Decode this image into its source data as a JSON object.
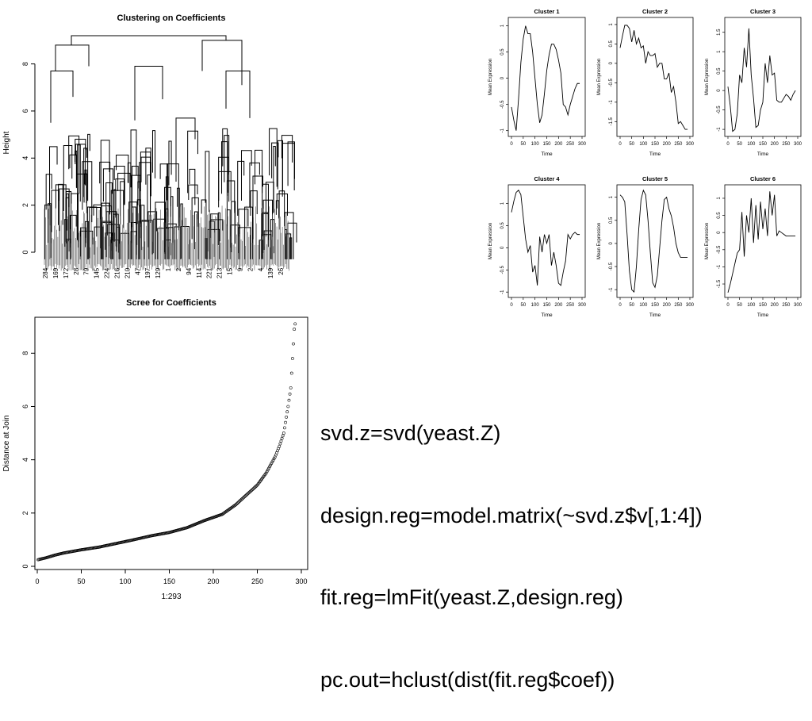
{
  "code_lines": [
    "svd.z=svd(yeast.Z)",
    "design.reg=model.matrix(~svd.z$v[,1:4])",
    "fit.reg=lmFit(yeast.Z,design.reg)",
    "pc.out=hclust(dist(fit.reg$coef))"
  ],
  "chart_data": [
    {
      "type": "dendrogram",
      "title": "Clustering on Coefficients",
      "ylabel": "Height",
      "ylim": [
        0,
        9.3
      ],
      "yticks": [
        0,
        2,
        4,
        6,
        8
      ],
      "top_merges": [
        {
          "height": 9.2,
          "left": 8.8,
          "right": 9.0
        },
        {
          "height": 8.8,
          "left": 7.7,
          "right": 7.9
        },
        {
          "height": 9.0,
          "left": 7.7,
          "right": 7.1
        },
        {
          "height": 7.7,
          "left": 5.5,
          "right": 6.6
        },
        {
          "height": 7.9,
          "left": 5.6,
          "right": 6.5
        },
        {
          "height": 7.7,
          "left": 5.7,
          "right": 6.1
        },
        {
          "height": 7.1,
          "left": 5.5,
          "right": 5.7
        }
      ],
      "tick_labels": [
        "284",
        "169",
        "172",
        "28",
        "79",
        "145",
        "224",
        "216",
        "210",
        "47",
        "197",
        "129",
        "1",
        "2",
        "94",
        "114",
        "221",
        "213",
        "15",
        "9",
        "2",
        "4",
        "139",
        "26"
      ]
    },
    {
      "type": "scatter",
      "title": "Scree for Coefficients",
      "xlabel": "1:293",
      "ylabel": "Distance at Join",
      "xlim": [
        0,
        300
      ],
      "ylim": [
        0,
        9.2
      ],
      "xticks": [
        0,
        50,
        100,
        150,
        200,
        250,
        300
      ],
      "yticks": [
        0,
        2,
        4,
        6,
        8
      ],
      "curve_points": [
        {
          "x": 1,
          "y": 0.25
        },
        {
          "x": 10,
          "y": 0.32
        },
        {
          "x": 20,
          "y": 0.42
        },
        {
          "x": 30,
          "y": 0.5
        },
        {
          "x": 50,
          "y": 0.62
        },
        {
          "x": 70,
          "y": 0.72
        },
        {
          "x": 90,
          "y": 0.86
        },
        {
          "x": 110,
          "y": 1.0
        },
        {
          "x": 130,
          "y": 1.15
        },
        {
          "x": 150,
          "y": 1.27
        },
        {
          "x": 170,
          "y": 1.45
        },
        {
          "x": 190,
          "y": 1.72
        },
        {
          "x": 210,
          "y": 1.95
        },
        {
          "x": 225,
          "y": 2.3
        },
        {
          "x": 240,
          "y": 2.75
        },
        {
          "x": 250,
          "y": 3.05
        },
        {
          "x": 260,
          "y": 3.5
        },
        {
          "x": 270,
          "y": 4.1
        },
        {
          "x": 275,
          "y": 4.5
        },
        {
          "x": 280,
          "y": 5.0
        },
        {
          "x": 285,
          "y": 6.0
        },
        {
          "x": 288,
          "y": 6.7
        },
        {
          "x": 290,
          "y": 7.8
        },
        {
          "x": 292,
          "y": 8.9
        },
        {
          "x": 293,
          "y": 9.1
        }
      ],
      "n_points": 293
    },
    {
      "type": "line",
      "panels": [
        {
          "title": "Cluster 1",
          "xlabel": "Time",
          "ylabel": "Mean Expression",
          "xlim": [
            0,
            300
          ],
          "xticks": [
            0,
            50,
            100,
            150,
            200,
            250,
            300
          ],
          "ylim": [
            -1.05,
            1.1
          ],
          "yticks": [
            -1.0,
            -0.5,
            0.0,
            0.5,
            1.0
          ],
          "x": [
            0,
            10,
            20,
            30,
            40,
            50,
            60,
            70,
            80,
            90,
            100,
            110,
            120,
            130,
            140,
            150,
            160,
            170,
            180,
            190,
            200,
            210,
            220,
            230,
            240,
            250,
            260,
            270,
            280,
            290
          ],
          "y": [
            -0.55,
            -0.8,
            -1.0,
            -0.4,
            0.3,
            0.75,
            1.0,
            0.85,
            0.85,
            0.5,
            0.0,
            -0.5,
            -0.85,
            -0.7,
            -0.3,
            0.15,
            0.45,
            0.65,
            0.65,
            0.55,
            0.35,
            0.1,
            -0.5,
            -0.55,
            -0.7,
            -0.5,
            -0.35,
            -0.2,
            -0.1,
            -0.1
          ]
        },
        {
          "title": "Cluster 2",
          "xlabel": "Time",
          "ylabel": "Mean Expression",
          "xlim": [
            0,
            300
          ],
          "xticks": [
            0,
            50,
            100,
            150,
            200,
            250,
            300
          ],
          "ylim": [
            -1.8,
            1.1
          ],
          "yticks": [
            -1.5,
            -1.0,
            -0.5,
            0.0,
            0.5,
            1.0
          ],
          "x": [
            0,
            10,
            20,
            30,
            40,
            50,
            60,
            70,
            80,
            90,
            100,
            110,
            120,
            130,
            140,
            150,
            160,
            170,
            180,
            190,
            200,
            210,
            220,
            230,
            240,
            250,
            260,
            270,
            280,
            290
          ],
          "y": [
            0.4,
            0.7,
            0.98,
            0.98,
            0.9,
            0.55,
            0.85,
            0.5,
            0.65,
            0.4,
            0.45,
            0.0,
            0.3,
            0.2,
            0.2,
            0.25,
            -0.1,
            0.0,
            0.0,
            -0.4,
            -0.4,
            -0.25,
            -0.75,
            -0.6,
            -1.0,
            -1.55,
            -1.5,
            -1.6,
            -1.7,
            -1.7
          ]
        },
        {
          "title": "Cluster 3",
          "xlabel": "Time",
          "ylabel": "Mean Expression",
          "xlim": [
            0,
            300
          ],
          "xticks": [
            0,
            50,
            100,
            150,
            200,
            250,
            300
          ],
          "ylim": [
            -1.1,
            1.8
          ],
          "yticks": [
            -1.0,
            -0.5,
            0.0,
            0.5,
            1.0,
            1.5
          ],
          "x": [
            0,
            10,
            20,
            30,
            40,
            50,
            60,
            70,
            80,
            90,
            100,
            110,
            120,
            130,
            140,
            150,
            160,
            170,
            180,
            190,
            200,
            210,
            220,
            230,
            240,
            250,
            260,
            270,
            280,
            290
          ],
          "y": [
            0.1,
            -0.4,
            -1.05,
            -1.0,
            -0.6,
            0.4,
            0.2,
            1.1,
            0.6,
            1.6,
            0.4,
            -0.2,
            -0.95,
            -0.9,
            -0.5,
            -0.3,
            0.7,
            0.2,
            0.9,
            0.4,
            0.45,
            -0.25,
            -0.3,
            -0.3,
            -0.2,
            -0.1,
            -0.15,
            -0.25,
            -0.1,
            0.0
          ]
        },
        {
          "title": "Cluster 4",
          "xlabel": "Time",
          "ylabel": "Mean Expression",
          "xlim": [
            0,
            300
          ],
          "xticks": [
            0,
            50,
            100,
            150,
            200,
            250,
            300
          ],
          "ylim": [
            -1.05,
            1.35
          ],
          "yticks": [
            -1.0,
            -0.5,
            0.0,
            0.5,
            1.0
          ],
          "x": [
            0,
            10,
            20,
            30,
            40,
            50,
            60,
            70,
            80,
            90,
            100,
            110,
            120,
            130,
            140,
            150,
            160,
            170,
            180,
            190,
            200,
            210,
            220,
            230,
            240,
            250,
            260,
            270,
            280,
            290
          ],
          "y": [
            0.8,
            1.05,
            1.25,
            1.3,
            1.2,
            0.7,
            0.2,
            -0.1,
            0.05,
            -0.55,
            -0.4,
            -0.85,
            0.25,
            -0.1,
            0.3,
            0.1,
            0.3,
            -0.4,
            -0.1,
            -0.4,
            -0.8,
            -0.85,
            -0.55,
            -0.3,
            0.3,
            0.2,
            0.3,
            0.35,
            0.3,
            0.3
          ]
        },
        {
          "title": "Cluster 5",
          "xlabel": "Time",
          "ylabel": "Mean Expression",
          "xlim": [
            0,
            300
          ],
          "xticks": [
            0,
            50,
            100,
            150,
            200,
            250,
            300
          ],
          "ylim": [
            -1.1,
            1.2
          ],
          "yticks": [
            -1.0,
            -0.5,
            0.0,
            0.5,
            1.0
          ],
          "x": [
            0,
            10,
            20,
            30,
            40,
            50,
            60,
            70,
            80,
            90,
            100,
            110,
            120,
            130,
            140,
            150,
            160,
            170,
            180,
            190,
            200,
            210,
            220,
            230,
            240,
            250,
            260,
            270,
            280,
            290
          ],
          "y": [
            1.05,
            1.0,
            0.9,
            0.2,
            -0.6,
            -1.0,
            -1.05,
            -0.5,
            0.3,
            0.95,
            1.15,
            1.05,
            0.5,
            -0.2,
            -0.85,
            -0.95,
            -0.7,
            -0.1,
            0.5,
            0.95,
            1.0,
            0.75,
            0.6,
            0.35,
            0.0,
            -0.2,
            -0.3,
            -0.3,
            -0.3,
            -0.3
          ]
        },
        {
          "title": "Cluster 6",
          "xlabel": "Time",
          "ylabel": "Mean Expression",
          "xlim": [
            0,
            300
          ],
          "xticks": [
            0,
            50,
            100,
            150,
            200,
            250,
            300
          ],
          "ylim": [
            -1.8,
            1.3
          ],
          "yticks": [
            -1.5,
            -1.0,
            -0.5,
            0.0,
            0.5,
            1.0
          ],
          "x": [
            0,
            10,
            20,
            30,
            40,
            50,
            60,
            70,
            80,
            90,
            100,
            110,
            120,
            130,
            140,
            150,
            160,
            170,
            180,
            190,
            200,
            210,
            220,
            230,
            240,
            250,
            260,
            270,
            280,
            290
          ],
          "y": [
            -1.75,
            -1.5,
            -1.2,
            -0.9,
            -0.6,
            -0.5,
            0.6,
            -0.7,
            0.5,
            0.0,
            1.0,
            -0.3,
            0.8,
            -0.2,
            0.9,
            0.1,
            0.7,
            -0.1,
            1.2,
            0.5,
            1.1,
            -0.1,
            0.05,
            0.0,
            -0.05,
            -0.1,
            -0.1,
            -0.1,
            -0.1,
            -0.1
          ]
        }
      ]
    }
  ]
}
